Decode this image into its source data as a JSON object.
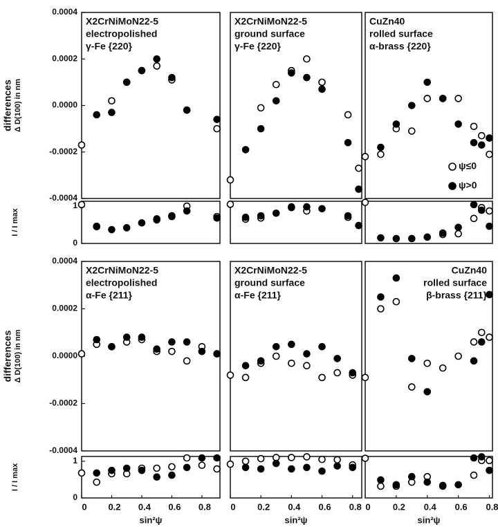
{
  "chart_data": [
    {
      "type": "scatter",
      "annotation": [
        "X2CrNiMoN22-5",
        "electropolished",
        "γ-Fe {220}"
      ],
      "ylabel": [
        "differences",
        "Δ D(100)  in nm"
      ],
      "x": [
        0,
        0.1,
        0.2,
        0.3,
        0.4,
        0.5,
        0.6,
        0.7,
        0.9
      ],
      "xlim": [
        0,
        0.92
      ],
      "ylim": [
        -0.0004,
        0.0004
      ],
      "yticks": [
        0.0004,
        0.0002,
        {
          "value": 0,
          "label": "0.0000"
        },
        -0.0002,
        -0.0004
      ],
      "series": [
        {
          "marker": "open",
          "color": "#000000",
          "values": [
            -0.00017,
            null,
            2e-05,
            0.0001,
            0.00015,
            0.00017,
            0.00011,
            -2e-05,
            -0.0001
          ]
        },
        {
          "marker": "filled",
          "color": "#000000",
          "values": [
            null,
            -4e-05,
            -3e-05,
            0.0001,
            0.00015,
            0.0002,
            0.00012,
            -2e-05,
            -6e-05
          ]
        }
      ],
      "intensity": {
        "ylabel": "I / I max",
        "ylim": [
          0,
          1.13
        ],
        "yticks": [
          0,
          1
        ],
        "series": [
          {
            "marker": "open",
            "color": "#000000",
            "values": [
              1.04,
              0.45,
              null,
              null,
              null,
              0.63,
              0.74,
              1.0,
              0.72
            ]
          },
          {
            "marker": "filled",
            "color": "#000000",
            "values": [
              null,
              0.46,
              0.37,
              0.42,
              0.55,
              0.66,
              0.72,
              0.87,
              0.68
            ]
          }
        ]
      }
    },
    {
      "type": "scatter",
      "annotation": [
        "X2CrNiMoN22-5",
        "ground surface",
        "γ-Fe {220}"
      ],
      "x": [
        0,
        0.1,
        0.2,
        0.3,
        0.4,
        0.5,
        0.6,
        0.77,
        0.84
      ],
      "xlim": [
        0,
        0.86
      ],
      "ylim": [
        -0.0004,
        0.0004
      ],
      "series": [
        {
          "marker": "open",
          "color": "#000000",
          "values": [
            -0.00032,
            null,
            -1e-05,
            9e-05,
            0.00015,
            0.0002,
            0.0001,
            -4e-05,
            -0.00027
          ]
        },
        {
          "marker": "filled",
          "color": "#000000",
          "values": [
            null,
            -0.00019,
            -0.0001,
            2e-05,
            0.00014,
            0.00012,
            7e-05,
            -0.00016,
            -0.00036
          ]
        }
      ],
      "intensity": {
        "ylim": [
          0,
          1.13
        ],
        "series": [
          {
            "marker": "open",
            "color": "#000000",
            "values": [
              1.05,
              0.65,
              0.68,
              null,
              0.96,
              0.87,
              null,
              0.7,
              null
            ]
          },
          {
            "marker": "filled",
            "color": "#000000",
            "values": [
              null,
              0.7,
              0.74,
              0.81,
              0.98,
              0.98,
              0.93,
              0.74,
              0.48
            ]
          }
        ]
      }
    },
    {
      "type": "scatter",
      "annotation": [
        "CuZn40",
        "rolled surface",
        "α-brass {220}"
      ],
      "x": [
        0,
        0.1,
        0.2,
        0.3,
        0.4,
        0.5,
        0.6,
        0.7,
        0.75,
        0.8
      ],
      "xlim": [
        0,
        0.82
      ],
      "ylim": [
        -0.0004,
        0.0004
      ],
      "legend": "lower right",
      "series": [
        {
          "name": "ψ≤0",
          "marker": "open",
          "color": "#000000",
          "values": [
            -0.00022,
            -0.00021,
            -0.0001,
            -0.00011,
            3e-05,
            3e-05,
            3e-05,
            -9e-05,
            -0.00013,
            -0.00021
          ]
        },
        {
          "name": "ψ>0",
          "marker": "filled",
          "color": "#000000",
          "values": [
            null,
            -0.00018,
            -8e-05,
            0,
            0.0001,
            3e-05,
            -8e-05,
            -0.00016,
            -0.00017,
            -0.00014
          ]
        }
      ],
      "intensity": {
        "ylim": [
          0,
          1.13
        ],
        "series": [
          {
            "marker": "open",
            "color": "#000000",
            "values": [
              1.1,
              null,
              null,
              null,
              null,
              0.24,
              0.26,
              0.67,
              0.96,
              0.87
            ]
          },
          {
            "marker": "filled",
            "color": "#000000",
            "values": [
              null,
              0.15,
              0.13,
              0.13,
              0.17,
              0.28,
              0.43,
              1.04,
              0.89,
              0.46
            ]
          }
        ]
      }
    },
    {
      "type": "scatter",
      "annotation": [
        "X2CrNiMoN22-5",
        "electropolished",
        "α-Fe {211}"
      ],
      "ylabel": [
        "differences",
        "Δ D(100)  in nm"
      ],
      "xlabel": "sin²ψ",
      "x": [
        0,
        0.1,
        0.2,
        0.3,
        0.4,
        0.5,
        0.6,
        0.7,
        0.8,
        0.9
      ],
      "xlim": [
        0,
        0.92
      ],
      "xticks": [
        0,
        0.2,
        0.4,
        0.6,
        0.8
      ],
      "ylim": [
        -0.0004,
        0.0004
      ],
      "yticks": [
        0.0004,
        0.0002,
        {
          "value": 0,
          "label": "0.0000"
        },
        -0.0002,
        -0.0004
      ],
      "series": [
        {
          "marker": "open",
          "color": "#000000",
          "values": [
            1e-05,
            5e-05,
            4e-05,
            6e-05,
            7e-05,
            2e-05,
            2e-05,
            -2e-05,
            4e-05,
            1e-05
          ]
        },
        {
          "marker": "filled",
          "color": "#000000",
          "values": [
            null,
            7e-05,
            4e-05,
            8e-05,
            8e-05,
            3e-05,
            6e-05,
            6e-05,
            2e-05,
            1e-05
          ]
        }
      ],
      "intensity": {
        "ylabel": "I / I max",
        "ylim": [
          0,
          1.13
        ],
        "yticks": [
          0,
          1
        ],
        "series": [
          {
            "marker": "open",
            "color": "#000000",
            "values": [
              0.68,
              0.43,
              0.66,
              0.66,
              0.81,
              0.81,
              0.85,
              1.09,
              0.89,
              0.79
            ]
          },
          {
            "marker": "filled",
            "color": "#000000",
            "values": [
              null,
              0.68,
              0.75,
              0.81,
              0.75,
              0.57,
              0.62,
              0.83,
              1.09,
              1.09
            ]
          }
        ]
      }
    },
    {
      "type": "scatter",
      "annotation": [
        "X2CrNiMoN22-5",
        "ground surface",
        "α-Fe {211}"
      ],
      "xlabel": "sin²ψ",
      "x": [
        0,
        0.1,
        0.2,
        0.3,
        0.4,
        0.5,
        0.6,
        0.7,
        0.8
      ],
      "xlim": [
        0,
        0.86
      ],
      "xticks": [
        0,
        0.2,
        0.4,
        0.6,
        0.8
      ],
      "ylim": [
        -0.0004,
        0.0004
      ],
      "series": [
        {
          "marker": "open",
          "color": "#000000",
          "values": [
            -8e-05,
            -9e-05,
            -3e-05,
            0,
            -3e-05,
            -4e-05,
            -9e-05,
            -7e-05,
            -8e-05
          ]
        },
        {
          "marker": "filled",
          "color": "#000000",
          "values": [
            null,
            -4e-05,
            -2e-05,
            4e-05,
            5e-05,
            1e-05,
            4e-05,
            -1e-05,
            -7e-05
          ]
        }
      ],
      "intensity": {
        "ylim": [
          0,
          1.13
        ],
        "series": [
          {
            "marker": "open",
            "color": "#000000",
            "values": [
              0.92,
              1.0,
              1.07,
              1.1,
              1.1,
              1.12,
              1.05,
              1.04,
              0.9
            ]
          },
          {
            "marker": "filled",
            "color": "#000000",
            "values": [
              null,
              0.83,
              0.79,
              0.94,
              0.79,
              0.83,
              0.73,
              0.87,
              0.83
            ]
          }
        ]
      }
    },
    {
      "type": "scatter",
      "annotation": [
        "CuZn40",
        "rolled surface",
        "β-brass {211}"
      ],
      "xlabel": "sin²ψ",
      "x": [
        0,
        0.1,
        0.2,
        0.3,
        0.4,
        0.5,
        0.6,
        0.7,
        0.75,
        0.8
      ],
      "xlim": [
        0,
        0.82
      ],
      "xticks": [
        0,
        0.2,
        0.4,
        0.6,
        0.8
      ],
      "ylim": [
        -0.0004,
        0.0004
      ],
      "series": [
        {
          "marker": "open",
          "color": "#000000",
          "values": [
            -9e-05,
            0.0002,
            0.00023,
            -0.00013,
            -3e-05,
            -5e-05,
            0,
            6e-05,
            0.0001,
            8e-05
          ]
        },
        {
          "marker": "filled",
          "color": "#000000",
          "values": [
            null,
            0.00025,
            0.00033,
            -1e-05,
            -0.00015,
            null,
            null,
            -2e-05,
            6e-05,
            0.00026
          ]
        }
      ],
      "intensity": {
        "ylim": [
          0,
          1.13
        ],
        "series": [
          {
            "marker": "open",
            "color": "#000000",
            "values": [
              1.08,
              0.32,
              0.32,
              0.43,
              0.58,
              0.32,
              null,
              0.62,
              1.02,
              1.02
            ]
          },
          {
            "marker": "filled",
            "color": "#000000",
            "values": [
              null,
              0.49,
              0.36,
              0.58,
              0.43,
              0.34,
              0.36,
              1.09,
              1.12,
              0.75
            ]
          }
        ]
      }
    }
  ]
}
